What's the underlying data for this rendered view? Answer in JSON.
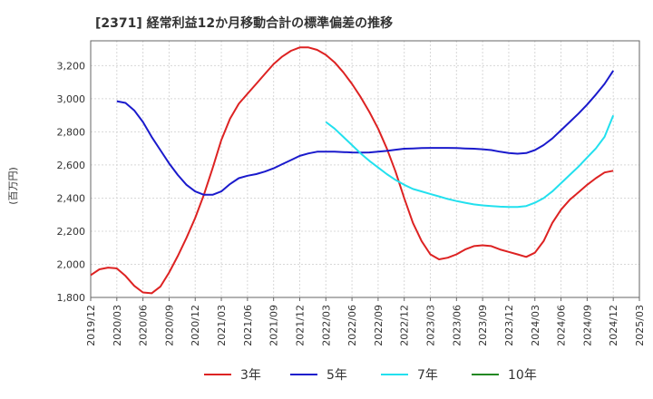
{
  "chart_data": {
    "type": "line",
    "title": "[2371]  経常利益12か月移動合計の標準偏差の推移",
    "ylabel": "(百万円)",
    "xlabel": "",
    "ylim": [
      1800,
      3350
    ],
    "yticks": [
      1800,
      2000,
      2200,
      2400,
      2600,
      2800,
      3000,
      3200
    ],
    "ytick_labels": [
      "1,800",
      "2,000",
      "2,200",
      "2,400",
      "2,600",
      "2,800",
      "3,000",
      "3,200"
    ],
    "xticks": [
      "2019/12",
      "2020/03",
      "2020/06",
      "2020/09",
      "2020/12",
      "2021/03",
      "2021/06",
      "2021/09",
      "2021/12",
      "2022/03",
      "2022/06",
      "2022/09",
      "2022/12",
      "2023/03",
      "2023/06",
      "2023/09",
      "2023/12",
      "2024/03",
      "2024/06",
      "2024/09",
      "2024/12",
      "2025/03"
    ],
    "grid": true,
    "legend_position": "bottom",
    "series": [
      {
        "name": "3年",
        "color": "#dd2222",
        "x": [
          "2019/12",
          "2020/01",
          "2020/02",
          "2020/03",
          "2020/04",
          "2020/05",
          "2020/06",
          "2020/07",
          "2020/08",
          "2020/09",
          "2020/10",
          "2020/11",
          "2020/12",
          "2021/01",
          "2021/02",
          "2021/03",
          "2021/04",
          "2021/05",
          "2021/06",
          "2021/07",
          "2021/08",
          "2021/09",
          "2021/10",
          "2021/11",
          "2021/12",
          "2022/01",
          "2022/02",
          "2022/03",
          "2022/04",
          "2022/05",
          "2022/06",
          "2022/07",
          "2022/08",
          "2022/09",
          "2022/10",
          "2022/11",
          "2022/12",
          "2023/01",
          "2023/02",
          "2023/03",
          "2023/04",
          "2023/05",
          "2023/06",
          "2023/07",
          "2023/08",
          "2023/09",
          "2023/10",
          "2023/11",
          "2023/12",
          "2024/01",
          "2024/02",
          "2024/03",
          "2024/04",
          "2024/05",
          "2024/06",
          "2024/07",
          "2024/08",
          "2024/09",
          "2024/10",
          "2024/11",
          "2024/12"
        ],
        "values": [
          1935,
          1970,
          1980,
          1975,
          1930,
          1870,
          1830,
          1825,
          1865,
          1950,
          2050,
          2160,
          2280,
          2420,
          2580,
          2750,
          2880,
          2970,
          3030,
          3090,
          3150,
          3210,
          3255,
          3290,
          3310,
          3310,
          3295,
          3265,
          3220,
          3160,
          3090,
          3010,
          2920,
          2820,
          2700,
          2560,
          2400,
          2250,
          2140,
          2060,
          2030,
          2040,
          2060,
          2090,
          2110,
          2115,
          2110,
          2090,
          2075,
          2060,
          2045,
          2070,
          2140,
          2250,
          2330,
          2390,
          2435,
          2480,
          2520,
          2555,
          2565
        ]
      },
      {
        "name": "5年",
        "color": "#1a1acc",
        "x": [
          "2020/03",
          "2020/04",
          "2020/05",
          "2020/06",
          "2020/07",
          "2020/08",
          "2020/09",
          "2020/10",
          "2020/11",
          "2020/12",
          "2021/01",
          "2021/02",
          "2021/03",
          "2021/04",
          "2021/05",
          "2021/06",
          "2021/07",
          "2021/08",
          "2021/09",
          "2021/10",
          "2021/11",
          "2021/12",
          "2022/01",
          "2022/02",
          "2022/03",
          "2022/04",
          "2022/05",
          "2022/06",
          "2022/07",
          "2022/08",
          "2022/09",
          "2022/10",
          "2022/11",
          "2022/12",
          "2023/01",
          "2023/02",
          "2023/03",
          "2023/04",
          "2023/05",
          "2023/06",
          "2023/07",
          "2023/08",
          "2023/09",
          "2023/10",
          "2023/11",
          "2023/12",
          "2024/01",
          "2024/02",
          "2024/03",
          "2024/04",
          "2024/05",
          "2024/06",
          "2024/07",
          "2024/08",
          "2024/09",
          "2024/10",
          "2024/11",
          "2024/12"
        ],
        "values": [
          2985,
          2975,
          2930,
          2860,
          2770,
          2690,
          2610,
          2540,
          2480,
          2440,
          2420,
          2420,
          2440,
          2485,
          2520,
          2535,
          2545,
          2560,
          2580,
          2605,
          2630,
          2655,
          2670,
          2680,
          2680,
          2680,
          2678,
          2676,
          2675,
          2676,
          2680,
          2685,
          2692,
          2698,
          2700,
          2702,
          2703,
          2703,
          2703,
          2702,
          2700,
          2698,
          2695,
          2690,
          2680,
          2672,
          2668,
          2672,
          2690,
          2720,
          2760,
          2810,
          2860,
          2910,
          2965,
          3025,
          3090,
          3170
        ]
      },
      {
        "name": "7年",
        "color": "#22e0ee",
        "x": [
          "2022/03",
          "2022/04",
          "2022/05",
          "2022/06",
          "2022/07",
          "2022/08",
          "2022/09",
          "2022/10",
          "2022/11",
          "2022/12",
          "2023/01",
          "2023/02",
          "2023/03",
          "2023/04",
          "2023/05",
          "2023/06",
          "2023/07",
          "2023/08",
          "2023/09",
          "2023/10",
          "2023/11",
          "2023/12",
          "2024/01",
          "2024/02",
          "2024/03",
          "2024/04",
          "2024/05",
          "2024/06",
          "2024/07",
          "2024/08",
          "2024/09",
          "2024/10",
          "2024/11",
          "2024/12"
        ],
        "values": [
          2860,
          2820,
          2770,
          2720,
          2670,
          2625,
          2585,
          2545,
          2510,
          2480,
          2455,
          2440,
          2425,
          2410,
          2395,
          2382,
          2372,
          2362,
          2356,
          2352,
          2348,
          2346,
          2346,
          2352,
          2372,
          2400,
          2440,
          2490,
          2540,
          2590,
          2645,
          2700,
          2770,
          2900
        ]
      },
      {
        "name": "10年",
        "color": "#228822",
        "x": [],
        "values": []
      }
    ]
  }
}
